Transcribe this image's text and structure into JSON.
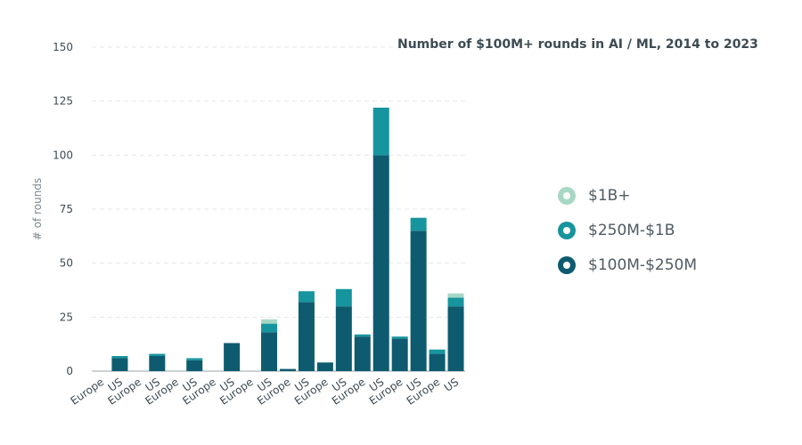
{
  "chart_data": {
    "type": "bar",
    "stacked": true,
    "title": "Number of $100M+ rounds in AI / ML, 2014 to 2023",
    "xlabel": "",
    "ylabel": "# of rounds",
    "ylim": [
      0,
      150
    ],
    "yticks": [
      0,
      25,
      50,
      75,
      100,
      125,
      150
    ],
    "grid": "horizontal dashed",
    "legend_position": "right",
    "categories": [
      "Europe",
      "US",
      "Europe",
      "US",
      "Europe",
      "US",
      "Europe",
      "US",
      "Europe",
      "US",
      "Europe",
      "US",
      "Europe",
      "US",
      "Europe",
      "US",
      "Europe",
      "US",
      "Europe",
      "US"
    ],
    "series": [
      {
        "name": "$100M-$250M",
        "color": "#0e5a6e",
        "values": [
          0,
          6,
          0,
          7,
          0,
          5,
          0,
          13,
          0,
          18,
          1,
          32,
          4,
          30,
          16,
          100,
          15,
          65,
          8,
          30
        ]
      },
      {
        "name": "$250M-$1B",
        "color": "#17959e",
        "values": [
          0,
          1,
          0,
          1,
          0,
          1,
          0,
          0,
          0,
          4,
          0,
          5,
          0,
          8,
          1,
          22,
          1,
          6,
          2,
          4
        ]
      },
      {
        "name": "$1B+",
        "color": "#a7d7c5",
        "values": [
          0,
          0,
          0,
          0,
          0,
          0,
          0,
          0,
          0,
          2,
          0,
          0,
          0,
          0,
          0,
          0,
          0,
          0,
          0,
          2
        ]
      }
    ]
  }
}
